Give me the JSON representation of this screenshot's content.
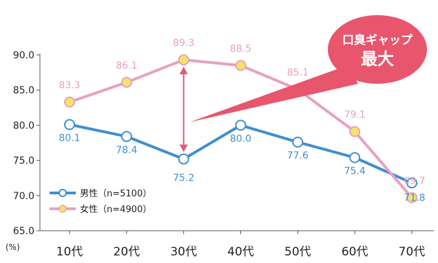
{
  "colors": {
    "male": "#3f8fcf",
    "female": "#e8a0c0",
    "female_marker": "#f5e46a",
    "arrow": "#e05a78",
    "callout": "#e8566e"
  },
  "annotation": {
    "line1": "口臭ギャップ",
    "line2": "最大"
  },
  "chart_data": {
    "type": "line",
    "unit_label": "(%)",
    "categories": [
      "10代",
      "20代",
      "30代",
      "40代",
      "50代",
      "60代",
      "70代"
    ],
    "ylim": [
      65.0,
      90.0
    ],
    "yticks": [
      "65.0",
      "70.0",
      "75.0",
      "80.0",
      "85.0",
      "90.0"
    ],
    "legend_position": "bottom-left",
    "grid": false,
    "series": [
      {
        "name": "男性（n=5100）",
        "values": [
          80.1,
          78.4,
          75.2,
          80.0,
          77.6,
          75.4,
          71.8
        ],
        "labels": [
          "80.1",
          "78.4",
          "75.2",
          "80.0",
          "77.6",
          "75.4",
          "71.8"
        ]
      },
      {
        "name": "女性（n=4900）",
        "values": [
          83.3,
          86.1,
          89.3,
          88.5,
          85.1,
          79.1,
          69.7
        ],
        "labels": [
          "83.3",
          "86.1",
          "89.3",
          "88.5",
          "85.1",
          "79.1",
          "69.7"
        ]
      }
    ]
  }
}
